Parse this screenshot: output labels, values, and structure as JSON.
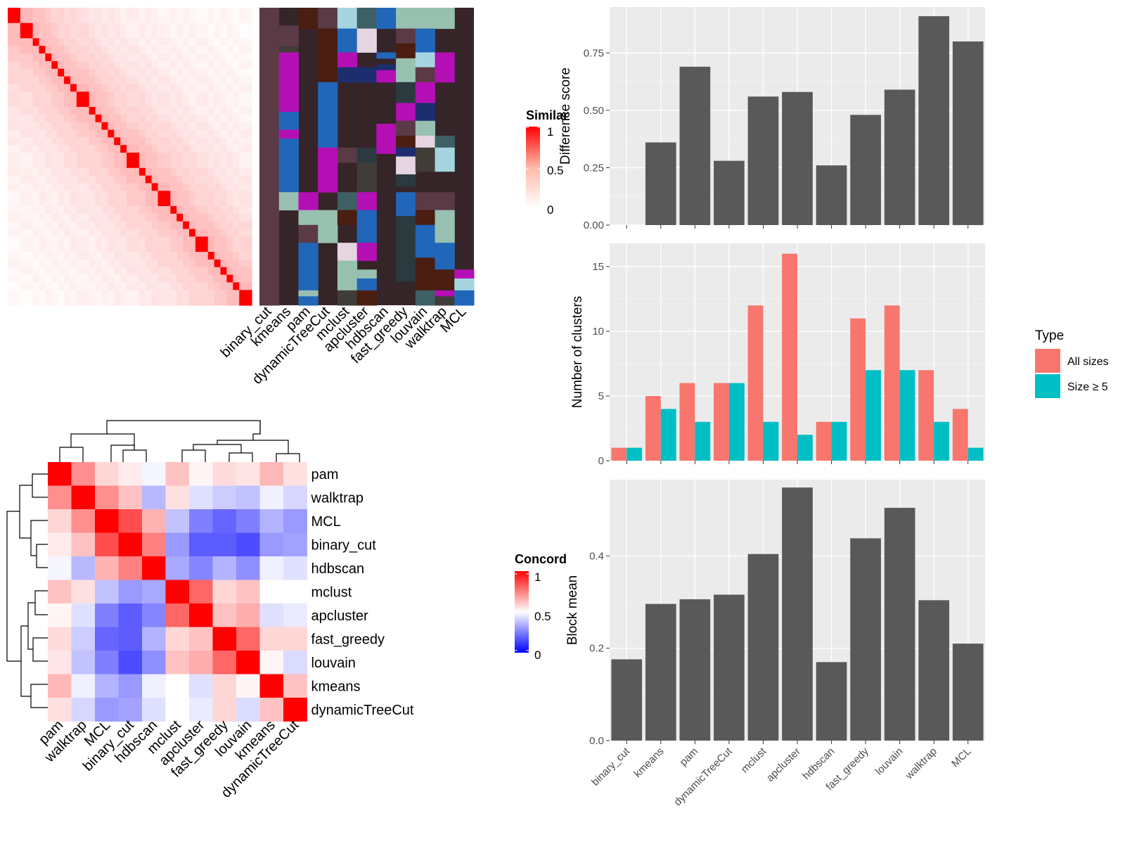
{
  "colors": {
    "panel_bg": "#ebebeb",
    "grid": "#ffffff",
    "bar": "#595959",
    "all_sizes": "#f8766d",
    "size_ge5": "#00bfc4",
    "heat_red": "#ff0000",
    "heat_blue": "#0000ff"
  },
  "chart_data": [
    {
      "type": "heatmap",
      "legend_title": "Similarity",
      "legend_ticks": [
        "1",
        "0.5",
        "0"
      ],
      "n_cells": 30
    },
    {
      "type": "heatmap",
      "categories": [
        "binary_cut",
        "kmeans",
        "pam",
        "dynamicTreeCut",
        "mclust",
        "apcluster",
        "hdbscan",
        "fast_greedy",
        "louvain",
        "walktrap",
        "MCL"
      ]
    },
    {
      "type": "heatmap",
      "legend_title": "Concordance",
      "legend_ticks": [
        "1",
        "0.5",
        "0"
      ],
      "rows": [
        "pam",
        "walktrap",
        "MCL",
        "binary_cut",
        "hdbscan",
        "mclust",
        "apcluster",
        "fast_greedy",
        "louvain",
        "kmeans",
        "dynamicTreeCut"
      ],
      "values": [
        [
          1.0,
          0.72,
          0.58,
          0.54,
          0.48,
          0.62,
          0.52,
          0.57,
          0.55,
          0.64,
          0.56
        ],
        [
          0.72,
          1.0,
          0.72,
          0.62,
          0.36,
          0.56,
          0.44,
          0.4,
          0.38,
          0.47,
          0.42
        ],
        [
          0.58,
          0.72,
          1.0,
          0.85,
          0.65,
          0.38,
          0.25,
          0.2,
          0.25,
          0.35,
          0.3
        ],
        [
          0.54,
          0.62,
          0.85,
          1.0,
          0.75,
          0.3,
          0.18,
          0.18,
          0.15,
          0.3,
          0.32
        ],
        [
          0.48,
          0.36,
          0.65,
          0.75,
          1.0,
          0.33,
          0.26,
          0.35,
          0.28,
          0.47,
          0.44
        ],
        [
          0.62,
          0.56,
          0.38,
          0.3,
          0.33,
          1.0,
          0.8,
          0.58,
          0.62,
          0.5,
          0.5
        ],
        [
          0.52,
          0.44,
          0.25,
          0.18,
          0.26,
          0.8,
          1.0,
          0.62,
          0.66,
          0.44,
          0.46
        ],
        [
          0.57,
          0.4,
          0.2,
          0.18,
          0.35,
          0.58,
          0.62,
          1.0,
          0.8,
          0.58,
          0.58
        ],
        [
          0.55,
          0.38,
          0.25,
          0.15,
          0.28,
          0.62,
          0.66,
          0.8,
          1.0,
          0.52,
          0.43
        ],
        [
          0.64,
          0.47,
          0.35,
          0.3,
          0.47,
          0.5,
          0.44,
          0.58,
          0.52,
          1.0,
          0.62
        ],
        [
          0.56,
          0.42,
          0.3,
          0.32,
          0.44,
          0.5,
          0.46,
          0.58,
          0.43,
          0.62,
          1.0
        ]
      ]
    },
    {
      "type": "bar",
      "categories": [
        "binary_cut",
        "kmeans",
        "pam",
        "dynamicTreeCut",
        "mclust",
        "apcluster",
        "hdbscan",
        "fast_greedy",
        "louvain",
        "walktrap",
        "MCL"
      ],
      "values": [
        0,
        0.36,
        0.69,
        0.28,
        0.56,
        0.58,
        0.26,
        0.48,
        0.59,
        0.91,
        0.8
      ],
      "ylabel": "Difference score",
      "ylim": [
        0,
        0.95
      ],
      "yticks": [
        "0.00",
        "0.25",
        "0.50",
        "0.75"
      ]
    },
    {
      "type": "bar",
      "categories": [
        "binary_cut",
        "kmeans",
        "pam",
        "dynamicTreeCut",
        "mclust",
        "apcluster",
        "hdbscan",
        "fast_greedy",
        "louvain",
        "walktrap",
        "MCL"
      ],
      "series": [
        {
          "name": "All sizes",
          "values": [
            1,
            5,
            6,
            6,
            12,
            16,
            3,
            11,
            12,
            7,
            4
          ]
        },
        {
          "name": "Size ≥ 5",
          "values": [
            1,
            4,
            3,
            6,
            3,
            2,
            3,
            7,
            7,
            3,
            1
          ]
        }
      ],
      "ylabel": "Number of clusters",
      "ylim": [
        0,
        16.8
      ],
      "yticks": [
        "0",
        "5",
        "10",
        "15"
      ],
      "legend_title": "Type"
    },
    {
      "type": "bar",
      "categories": [
        "binary_cut",
        "kmeans",
        "pam",
        "dynamicTreeCut",
        "mclust",
        "apcluster",
        "hdbscan",
        "fast_greedy",
        "louvain",
        "walktrap",
        "MCL"
      ],
      "values": [
        0.176,
        0.296,
        0.306,
        0.316,
        0.404,
        0.548,
        0.17,
        0.438,
        0.504,
        0.304,
        0.21
      ],
      "ylabel": "Block mean",
      "ylim": [
        0,
        0.565
      ],
      "yticks": [
        "0.0",
        "0.2",
        "0.4"
      ]
    }
  ]
}
